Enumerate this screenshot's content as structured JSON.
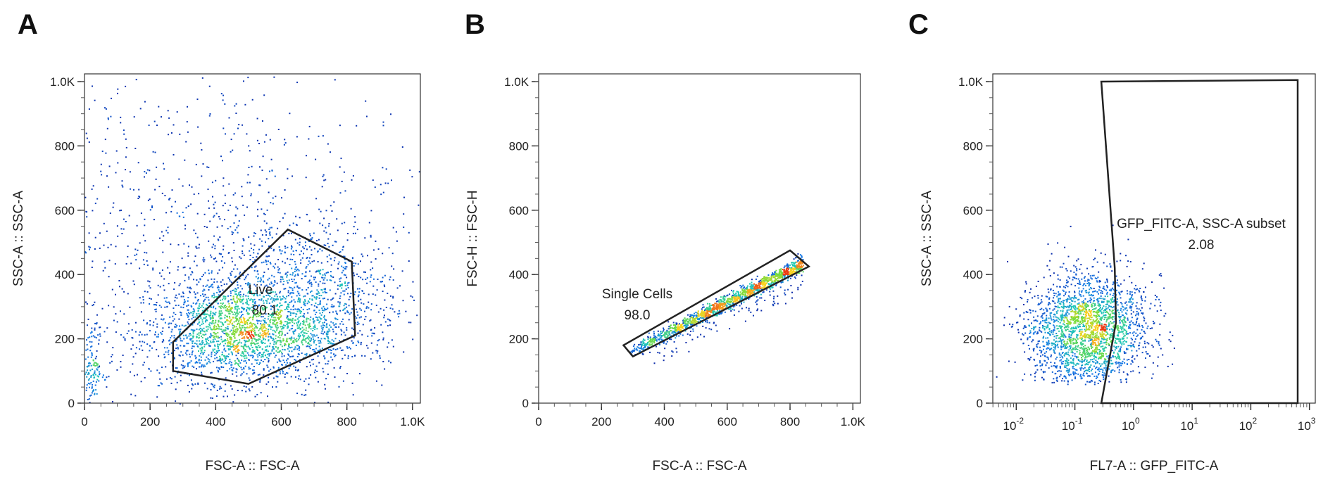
{
  "panels": [
    {
      "letter": "A",
      "chart_data": {
        "type": "scatter",
        "title": "",
        "xlabel": "FSC-A :: FSC-A",
        "ylabel": "SSC-A :: SSC-A",
        "xscale": "linear",
        "yscale": "linear",
        "xlim": [
          0,
          1024
        ],
        "ylim": [
          0,
          1024
        ],
        "x_ticks": [
          {
            "value": 0,
            "label": "0"
          },
          {
            "value": 200,
            "label": "200"
          },
          {
            "value": 400,
            "label": "400"
          },
          {
            "value": 600,
            "label": "600"
          },
          {
            "value": 800,
            "label": "800"
          },
          {
            "value": 1000,
            "label": "1.0K"
          }
        ],
        "y_ticks": [
          {
            "value": 0,
            "label": "0"
          },
          {
            "value": 200,
            "label": "200"
          },
          {
            "value": 400,
            "label": "400"
          },
          {
            "value": 600,
            "label": "600"
          },
          {
            "value": 800,
            "label": "800"
          },
          {
            "value": 1000,
            "label": "1.0K"
          }
        ],
        "populations": [
          {
            "center": [
              480,
              220
            ],
            "spread": [
              150,
              75
            ],
            "count": 1900
          },
          {
            "center": [
              640,
              330
            ],
            "spread": [
              170,
              120
            ],
            "count": 1100
          },
          {
            "center": [
              20,
              110
            ],
            "spread": [
              20,
              60
            ],
            "count": 160
          },
          {
            "center": [
              330,
              520
            ],
            "spread": [
              340,
              270
            ],
            "count": 900
          }
        ],
        "gate": {
          "name": "Live",
          "value": "80.1",
          "vertices": [
            [
              270,
              190
            ],
            [
              620,
              540
            ],
            [
              815,
              440
            ],
            [
              825,
              210
            ],
            [
              500,
              60
            ],
            [
              270,
              100
            ]
          ]
        }
      }
    },
    {
      "letter": "B",
      "chart_data": {
        "type": "scatter",
        "title": "",
        "xlabel": "FSC-A :: FSC-A",
        "ylabel": "FSC-H :: FSC-H",
        "xscale": "linear",
        "yscale": "linear",
        "xlim": [
          0,
          1024
        ],
        "ylim": [
          0,
          1024
        ],
        "x_ticks": [
          {
            "value": 0,
            "label": "0"
          },
          {
            "value": 200,
            "label": "200"
          },
          {
            "value": 400,
            "label": "400"
          },
          {
            "value": 600,
            "label": "600"
          },
          {
            "value": 800,
            "label": "800"
          },
          {
            "value": 1000,
            "label": "1.0K"
          }
        ],
        "y_ticks": [
          {
            "value": 0,
            "label": "0"
          },
          {
            "value": 200,
            "label": "200"
          },
          {
            "value": 400,
            "label": "400"
          },
          {
            "value": 600,
            "label": "600"
          },
          {
            "value": 800,
            "label": "800"
          },
          {
            "value": 1000,
            "label": "1.0K"
          }
        ],
        "diagonal_population": {
          "x_range": [
            290,
            840
          ],
          "y_at_start": 160,
          "y_at_end": 435,
          "count": 1500
        },
        "gate": {
          "name": "Single Cells",
          "value": "98.0",
          "vertices": [
            [
              270,
              180
            ],
            [
              800,
              475
            ],
            [
              860,
              425
            ],
            [
              300,
              145
            ]
          ]
        }
      }
    },
    {
      "letter": "C",
      "chart_data": {
        "type": "scatter",
        "title": "",
        "xlabel": "FL7-A :: GFP_FITC-A",
        "ylabel": "SSC-A :: SSC-A",
        "xscale": "log",
        "yscale": "linear",
        "xlim_log10": [
          -2.4,
          3.1
        ],
        "ylim": [
          0,
          1024
        ],
        "x_ticks": [
          {
            "exponent": -2,
            "base": "10",
            "sup": "-2"
          },
          {
            "exponent": -1,
            "base": "10",
            "sup": "-1"
          },
          {
            "exponent": 0,
            "base": "10",
            "sup": "0"
          },
          {
            "exponent": 1,
            "base": "10",
            "sup": "1"
          },
          {
            "exponent": 2,
            "base": "10",
            "sup": "2"
          },
          {
            "exponent": 3,
            "base": "10",
            "sup": "3"
          }
        ],
        "y_ticks": [
          {
            "value": 0,
            "label": "0"
          },
          {
            "value": 200,
            "label": "200"
          },
          {
            "value": 400,
            "label": "400"
          },
          {
            "value": 600,
            "label": "600"
          },
          {
            "value": 800,
            "label": "800"
          },
          {
            "value": 1000,
            "label": "1.0K"
          }
        ],
        "population": {
          "center_log10": [
            -0.8,
            230
          ],
          "spread": [
            0.5,
            85
          ],
          "count": 2400
        },
        "gate": {
          "name": "GFP_FITC-A, SSC-A subset",
          "value": "2.08",
          "vertices_log10": [
            [
              -0.55,
              1000
            ],
            [
              2.8,
              1005
            ],
            [
              2.8,
              0
            ],
            [
              -0.55,
              0
            ],
            [
              -0.3,
              250
            ],
            [
              -0.32,
              420
            ]
          ]
        }
      }
    }
  ]
}
